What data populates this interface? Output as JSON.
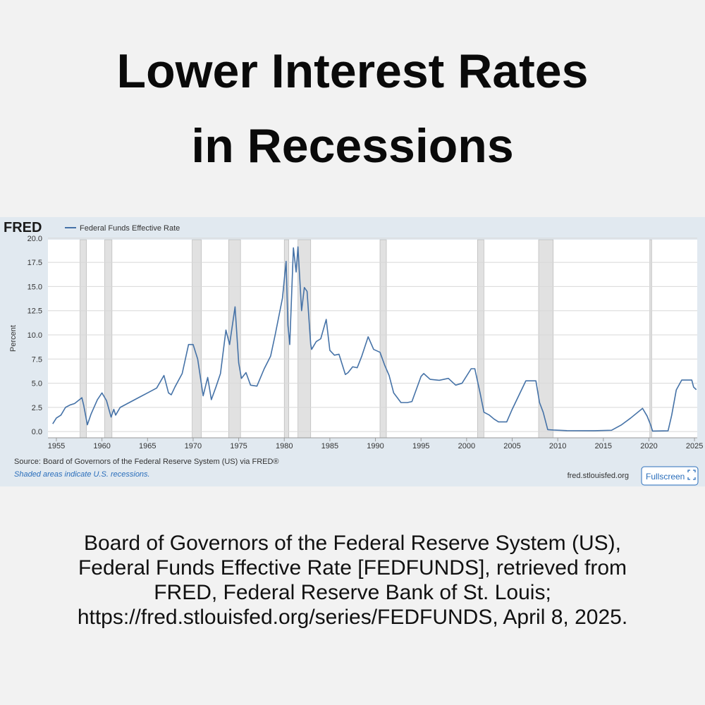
{
  "title": [
    "Lower Interest Rates",
    "in Recessions"
  ],
  "citation": [
    "Board of Governors of the Federal Reserve System (US),",
    "Federal Funds Effective Rate [FEDFUNDS], retrieved from",
    "FRED, Federal Reserve Bank of St. Louis;",
    "https://fred.stlouisfed.org/series/FEDFUNDS, April 8, 2025."
  ],
  "chart_data": {
    "type": "line",
    "logo": "FRED",
    "y_label": "Percent",
    "source": "Source: Board of Governors of the Federal Reserve System (US) via FRED®",
    "note": "Shaded areas indicate U.S. recessions.",
    "site": "fred.stlouisfed.org",
    "button": "Fullscreen",
    "xlim": [
      1954.5,
      2025.3
    ],
    "xticks": [
      1955,
      1960,
      1965,
      1970,
      1975,
      1980,
      1985,
      1990,
      1995,
      2000,
      2005,
      2010,
      2015,
      2020,
      2025
    ],
    "ylim": [
      -0.5,
      20.5
    ],
    "yticks": [
      {
        "value": 0,
        "label": "0.0"
      },
      2.5,
      {
        "value": 5,
        "label": "5.0"
      },
      7.5,
      {
        "value": 10,
        "label": "10.0"
      },
      12.5,
      {
        "value": 15,
        "label": "15.0"
      },
      17.5,
      {
        "value": 20,
        "label": "20.0"
      }
    ],
    "grid": true,
    "recessions": [
      [
        1957.6,
        1958.3
      ],
      [
        1960.3,
        1961.1
      ],
      [
        1969.9,
        1970.9
      ],
      [
        1973.9,
        1975.2
      ],
      [
        1980.0,
        1980.5
      ],
      [
        1981.5,
        1982.9
      ],
      [
        1990.5,
        1991.2
      ],
      [
        2001.2,
        2001.9
      ],
      [
        2007.9,
        2009.5
      ],
      [
        2020.1,
        2020.3
      ]
    ],
    "x": [
      1954.6,
      1955.0,
      1955.5,
      1956.0,
      1956.5,
      1957.0,
      1957.8,
      1958.0,
      1958.4,
      1958.8,
      1959.5,
      1960.0,
      1960.5,
      1961.0,
      1961.3,
      1961.5,
      1962.0,
      1963.0,
      1964.0,
      1965.0,
      1966.0,
      1966.8,
      1967.3,
      1967.6,
      1968.0,
      1968.8,
      1969.5,
      1970.0,
      1970.5,
      1971.1,
      1971.6,
      1972.0,
      1972.5,
      1973.0,
      1973.6,
      1974.0,
      1974.6,
      1975.0,
      1975.3,
      1975.8,
      1976.3,
      1977.0,
      1977.8,
      1978.5,
      1979.0,
      1979.8,
      1980.2,
      1980.4,
      1980.6,
      1981.0,
      1981.3,
      1981.5,
      1981.9,
      1982.2,
      1982.5,
      1982.9,
      1983.0,
      1983.5,
      1984.0,
      1984.6,
      1985.0,
      1985.5,
      1986.0,
      1986.7,
      1987.0,
      1987.5,
      1988.0,
      1988.5,
      1989.2,
      1989.8,
      1990.5,
      1991.0,
      1991.5,
      1992.0,
      1992.8,
      1993.5,
      1994.0,
      1995.0,
      1995.3,
      1996.0,
      1997.0,
      1998.0,
      1998.8,
      1999.5,
      2000.5,
      2000.9,
      2001.5,
      2001.9,
      2002.5,
      2003.0,
      2003.5,
      2004.4,
      2005.0,
      2006.5,
      2007.6,
      2008.0,
      2008.4,
      2008.9,
      2009.5,
      2011.0,
      2014.0,
      2015.9,
      2017.0,
      2018.0,
      2019.3,
      2019.8,
      2020.2,
      2020.4,
      2022.1,
      2022.5,
      2023.0,
      2023.6,
      2024.7,
      2024.9,
      2025.2
    ],
    "series": [
      {
        "name": "Federal Funds Effective Rate",
        "color": "#4572a7",
        "values": [
          0.8,
          1.4,
          1.7,
          2.5,
          2.75,
          2.9,
          3.5,
          2.7,
          0.7,
          1.8,
          3.3,
          4.0,
          3.2,
          1.5,
          2.3,
          1.7,
          2.5,
          3.0,
          3.5,
          4.0,
          4.5,
          5.8,
          4.0,
          3.8,
          4.6,
          6.0,
          9.0,
          9.0,
          7.5,
          3.7,
          5.6,
          3.3,
          4.6,
          6.0,
          10.5,
          9.0,
          12.9,
          7.1,
          5.5,
          6.1,
          4.8,
          4.7,
          6.5,
          7.8,
          10.0,
          13.8,
          17.6,
          11.0,
          9.0,
          19.0,
          16.5,
          19.1,
          12.5,
          14.9,
          14.5,
          9.0,
          8.5,
          9.3,
          9.6,
          11.6,
          8.4,
          7.9,
          8.0,
          5.9,
          6.1,
          6.7,
          6.6,
          7.8,
          9.8,
          8.5,
          8.2,
          6.9,
          5.8,
          4.0,
          3.0,
          3.0,
          3.1,
          5.7,
          6.0,
          5.4,
          5.3,
          5.5,
          4.8,
          5.0,
          6.5,
          6.5,
          3.9,
          2.0,
          1.7,
          1.3,
          1.0,
          1.0,
          2.3,
          5.25,
          5.25,
          3.0,
          2.0,
          0.2,
          0.16,
          0.1,
          0.09,
          0.13,
          0.7,
          1.4,
          2.4,
          1.6,
          0.65,
          0.05,
          0.08,
          1.7,
          4.3,
          5.33,
          5.33,
          4.6,
          4.33
        ]
      }
    ]
  }
}
